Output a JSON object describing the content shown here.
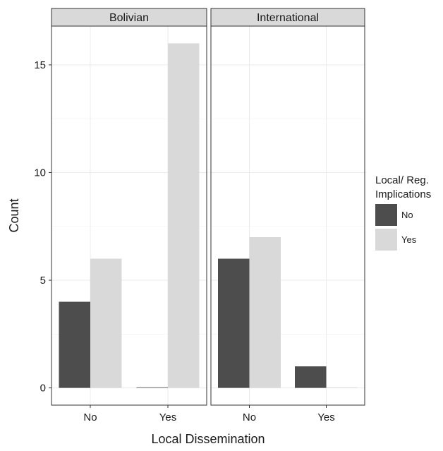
{
  "chart_data": {
    "type": "bar",
    "facet_label": "",
    "facets": [
      "Bolivian",
      "International"
    ],
    "categories": [
      "No",
      "Yes"
    ],
    "xlabel": "Local Dissemination",
    "ylabel": "Count",
    "ylim": [
      -0.8,
      16.8
    ],
    "yticks": [
      0,
      5,
      10,
      15
    ],
    "grid": true,
    "legend": {
      "title_line1": "Local/ Reg.",
      "title_line2": "Implications",
      "position": "right",
      "entries": [
        {
          "name": "No",
          "color": "#4d4d4d"
        },
        {
          "name": "Yes",
          "color": "#d9d9d9"
        }
      ]
    },
    "series": [
      {
        "name": "No",
        "color": "#4d4d4d",
        "values": {
          "Bolivian": [
            4,
            0
          ],
          "International": [
            6,
            1
          ]
        }
      },
      {
        "name": "Yes",
        "color": "#d9d9d9",
        "values": {
          "Bolivian": [
            6,
            16
          ],
          "International": [
            7,
            0
          ]
        }
      }
    ]
  }
}
